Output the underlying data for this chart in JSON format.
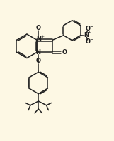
{
  "bg_color": "#fdf8e4",
  "lc": "#222222",
  "lw": 1.1,
  "fig_w": 1.61,
  "fig_h": 1.98,
  "dpi": 100,
  "xlim": [
    -0.5,
    10.0
  ],
  "ylim": [
    0.0,
    12.5
  ]
}
